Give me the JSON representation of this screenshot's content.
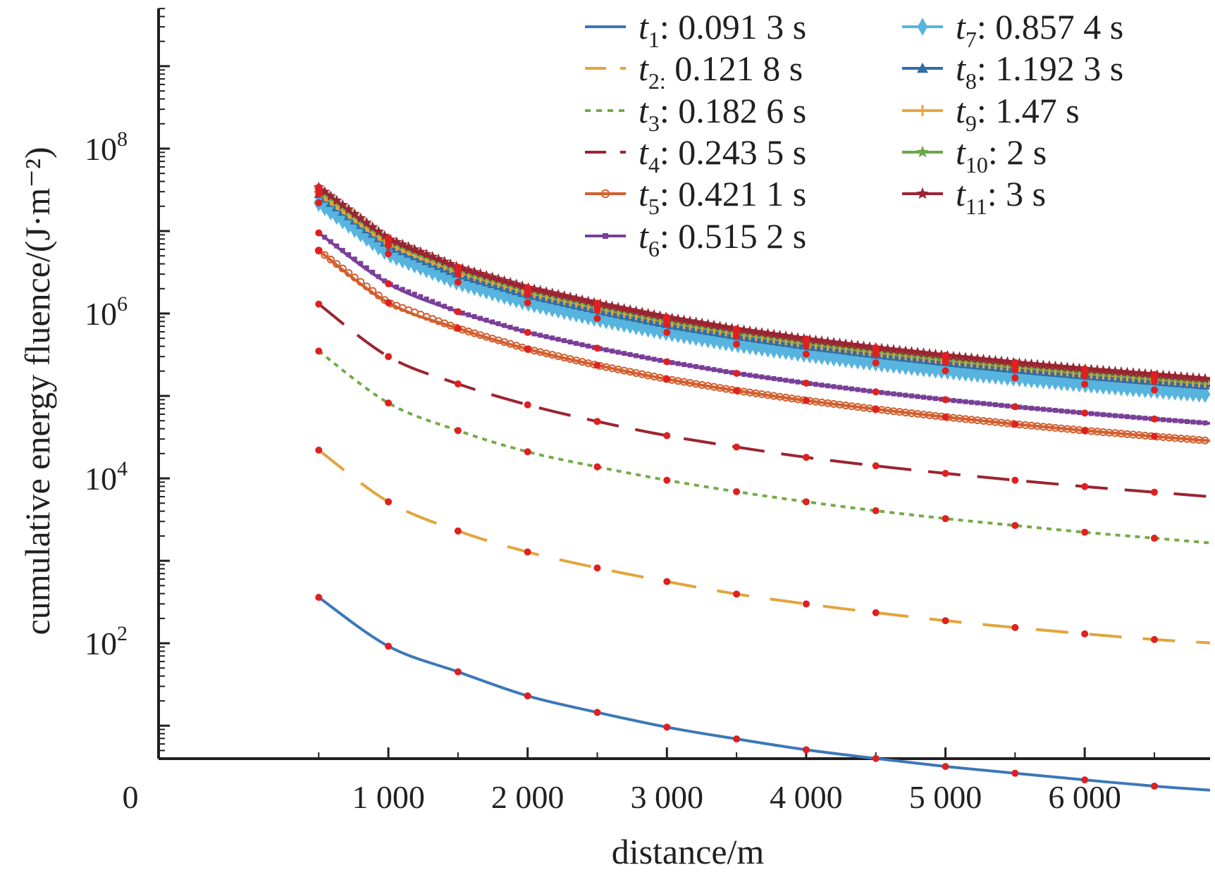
{
  "chart_data": {
    "type": "line",
    "title": "",
    "xlabel": "distance/m",
    "ylabel": "cumulative energy fluence/(J·m⁻²)",
    "xlim": [
      -650,
      6900
    ],
    "ylim_log10": [
      0.6,
      9.7
    ],
    "y_scale": "log",
    "x_ticks": [
      0,
      1000,
      2000,
      3000,
      4000,
      5000,
      6000
    ],
    "x_tick_labels": [
      "0",
      "1 000",
      "2 000",
      "3 000",
      "4 000",
      "5 000",
      "6 000"
    ],
    "y_ticks": [
      100,
      10000,
      1000000,
      100000000
    ],
    "y_tick_labels": [
      {
        "base": "10",
        "exp": "2"
      },
      {
        "base": "10",
        "exp": "4"
      },
      {
        "base": "10",
        "exp": "6"
      },
      {
        "base": "10",
        "exp": "8"
      }
    ],
    "grid": false,
    "legend_position": "top-right",
    "x": [
      500,
      1000,
      1500,
      2000,
      2500,
      3000,
      3500,
      4000,
      4500,
      5000,
      5500,
      6000,
      6500,
      6900
    ],
    "markers_x": [
      500,
      1000,
      1500,
      2000,
      2500,
      3000,
      3500,
      4000,
      4500,
      5000,
      5500,
      6000,
      6500
    ],
    "series": [
      {
        "name": "0.091 3 s",
        "sub": "1",
        "sep": ":",
        "color": "#3b78b8",
        "dash": "",
        "marker": "none",
        "values": [
          360,
          92,
          45,
          23,
          14.5,
          9.6,
          6.9,
          5.1,
          4.0,
          3.2,
          2.65,
          2.2,
          1.85,
          1.65
        ]
      },
      {
        "name": "0.121 8 s",
        "sub": "2:",
        "sep": "",
        "color": "#e2a53c",
        "dash": "46 30",
        "marker": "none",
        "values": [
          22000,
          5200,
          2300,
          1280,
          820,
          560,
          395,
          300,
          235,
          188,
          155,
          130,
          111,
          101
        ]
      },
      {
        "name": "0.182 6 s",
        "sub": "3",
        "sep": ":",
        "color": "#75ab48",
        "dash": "7 7",
        "marker": "none",
        "values": [
          350000,
          82000,
          38000,
          21000,
          13800,
          9500,
          6900,
          5200,
          4050,
          3250,
          2680,
          2220,
          1880,
          1650
        ]
      },
      {
        "name": "0.243 5 s",
        "sub": "4",
        "sep": ":",
        "color": "#9b2432",
        "dash": "46 24",
        "marker": "none",
        "values": [
          1300000,
          300000,
          140000,
          78000,
          49000,
          33000,
          24000,
          18000,
          14200,
          11500,
          9500,
          7950,
          6800,
          6000
        ]
      },
      {
        "name": "0.421 1 s",
        "sub": "5",
        "sep": ":",
        "color": "#d35f2e",
        "dash": "",
        "marker": "circle",
        "values": [
          5800000,
          1350000,
          660000,
          370000,
          235000,
          160000,
          116000,
          88000,
          69000,
          55500,
          45500,
          38000,
          32300,
          28500
        ]
      },
      {
        "name": "0.515 2 s",
        "sub": "6",
        "sep": ":",
        "color": "#7a3f98",
        "dash": "",
        "marker": "square",
        "values": [
          9500000,
          2300000,
          1050000,
          590000,
          380000,
          260000,
          188000,
          143000,
          112000,
          90000,
          74000,
          62000,
          52500,
          46500
        ]
      },
      {
        "name": "0.857 4 s",
        "sub": "7",
        "sep": ":",
        "color": "#56b4de",
        "dash": "",
        "marker": "diamond",
        "values": [
          22000000,
          5300000,
          2400000,
          1350000,
          870000,
          590000,
          425000,
          322000,
          252000,
          202000,
          166000,
          139000,
          118000,
          104000
        ]
      },
      {
        "name": "1.192 3 s",
        "sub": "8",
        "sep": ":",
        "color": "#2f6ea8",
        "dash": "",
        "marker": "triangle",
        "values": [
          28000000,
          6700000,
          3000000,
          1700000,
          1100000,
          740000,
          535000,
          405000,
          318000,
          256000,
          210000,
          176000,
          150000,
          132000
        ]
      },
      {
        "name": "1.47 s",
        "sub": "9",
        "sep": ":",
        "color": "#e8a640",
        "dash": "",
        "marker": "plus",
        "values": [
          30000000,
          7200000,
          3250000,
          1830000,
          1180000,
          800000,
          575000,
          435000,
          342000,
          275000,
          226000,
          189000,
          161000,
          142000
        ]
      },
      {
        "name": "2 s",
        "sub": "10",
        "sep": ":",
        "color": "#6fa64a",
        "dash": "",
        "marker": "star",
        "values": [
          32000000,
          7700000,
          3450000,
          1950000,
          1260000,
          850000,
          612000,
          463000,
          364000,
          293000,
          240000,
          201000,
          172000,
          151000
        ]
      },
      {
        "name": "3 s",
        "sub": "11",
        "sep": ":",
        "color": "#9b2432",
        "dash": "",
        "marker": "star",
        "values": [
          34000000,
          8100000,
          3650000,
          2060000,
          1330000,
          900000,
          648000,
          490000,
          385000,
          310000,
          254000,
          213000,
          182000,
          160000
        ]
      }
    ],
    "marker_dot_color": "#e02020"
  }
}
